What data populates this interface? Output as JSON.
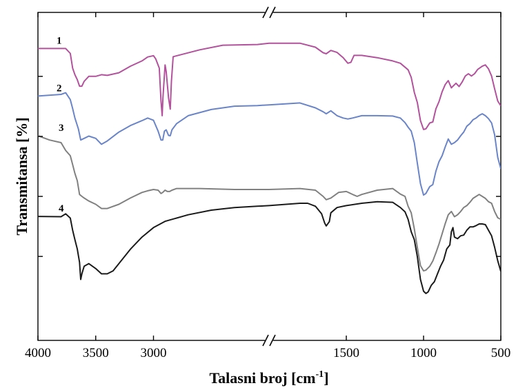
{
  "chart_data": {
    "type": "line",
    "title": "",
    "xlabel": "Talasni broj [cm",
    "xlabel_superscript": "-1",
    "xlabel_suffix": "]",
    "ylabel": "Transmitansa [%]",
    "x_reversed": true,
    "x_segments": [
      {
        "from": 4000,
        "to": 2000
      },
      {
        "from": 2000,
        "to": 500
      }
    ],
    "x_ticks": [
      4000,
      3500,
      3000,
      1500,
      1000,
      500
    ],
    "x_tick_labels": [
      "4000",
      "3500",
      "3000",
      "1500",
      "1000",
      "500"
    ],
    "y_ticks": 4,
    "y_range": [
      0,
      100
    ],
    "grid": false,
    "series": [
      {
        "name": "1",
        "color": "#b2529c",
        "points": [
          [
            4000,
            89
          ],
          [
            3760,
            89
          ],
          [
            3720,
            87.5
          ],
          [
            3700,
            83
          ],
          [
            3680,
            81
          ],
          [
            3660,
            79.5
          ],
          [
            3640,
            77.5
          ],
          [
            3620,
            77.5
          ],
          [
            3600,
            79
          ],
          [
            3560,
            80.5
          ],
          [
            3500,
            80.5
          ],
          [
            3450,
            81
          ],
          [
            3400,
            80.8
          ],
          [
            3300,
            81.6
          ],
          [
            3200,
            83.6
          ],
          [
            3100,
            85.2
          ],
          [
            3050,
            86.4
          ],
          [
            3000,
            86.8
          ],
          [
            2980,
            85.8
          ],
          [
            2950,
            83
          ],
          [
            2935,
            73
          ],
          [
            2925,
            68.5
          ],
          [
            2918,
            74
          ],
          [
            2900,
            84
          ],
          [
            2890,
            82
          ],
          [
            2870,
            74
          ],
          [
            2855,
            70.5
          ],
          [
            2845,
            79
          ],
          [
            2830,
            86.5
          ],
          [
            2600,
            88.6
          ],
          [
            2400,
            90
          ],
          [
            2100,
            90.2
          ],
          [
            2000,
            90.6
          ],
          [
            1800,
            90.6
          ],
          [
            1700,
            89.4
          ],
          [
            1650,
            87.7
          ],
          [
            1630,
            87.4
          ],
          [
            1600,
            88.4
          ],
          [
            1560,
            87.8
          ],
          [
            1520,
            86.2
          ],
          [
            1490,
            84.5
          ],
          [
            1470,
            84.8
          ],
          [
            1450,
            86.9
          ],
          [
            1400,
            86.9
          ],
          [
            1300,
            86.2
          ],
          [
            1200,
            85.2
          ],
          [
            1150,
            84.5
          ],
          [
            1100,
            82.5
          ],
          [
            1080,
            80.2
          ],
          [
            1060,
            75.6
          ],
          [
            1040,
            72.5
          ],
          [
            1020,
            67
          ],
          [
            1000,
            64.3
          ],
          [
            985,
            64.5
          ],
          [
            960,
            66.3
          ],
          [
            940,
            66.6
          ],
          [
            920,
            70.6
          ],
          [
            900,
            72.8
          ],
          [
            880,
            75.8
          ],
          [
            860,
            78
          ],
          [
            840,
            79.2
          ],
          [
            820,
            77
          ],
          [
            810,
            77.5
          ],
          [
            790,
            78.4
          ],
          [
            770,
            77.4
          ],
          [
            750,
            78.8
          ],
          [
            730,
            80.6
          ],
          [
            710,
            81.3
          ],
          [
            690,
            80.6
          ],
          [
            670,
            81.3
          ],
          [
            650,
            82.6
          ],
          [
            620,
            83.6
          ],
          [
            600,
            84
          ],
          [
            580,
            82.8
          ],
          [
            560,
            80.6
          ],
          [
            540,
            76.7
          ],
          [
            520,
            73
          ],
          [
            500,
            71.5
          ]
        ]
      },
      {
        "name": "2",
        "color": "#6a84c8",
        "points": [
          [
            4000,
            74.5
          ],
          [
            3800,
            75
          ],
          [
            3760,
            75.5
          ],
          [
            3720,
            73.4
          ],
          [
            3700,
            70.7
          ],
          [
            3680,
            67.8
          ],
          [
            3650,
            64.5
          ],
          [
            3630,
            61.1
          ],
          [
            3600,
            61.6
          ],
          [
            3560,
            62.3
          ],
          [
            3500,
            61.6
          ],
          [
            3450,
            59.8
          ],
          [
            3400,
            60.8
          ],
          [
            3300,
            63.5
          ],
          [
            3200,
            65.5
          ],
          [
            3100,
            67
          ],
          [
            3050,
            67.8
          ],
          [
            3000,
            67.1
          ],
          [
            2960,
            63.8
          ],
          [
            2935,
            61.1
          ],
          [
            2920,
            61.1
          ],
          [
            2905,
            63.8
          ],
          [
            2890,
            64.2
          ],
          [
            2870,
            62.5
          ],
          [
            2855,
            62.4
          ],
          [
            2840,
            64.2
          ],
          [
            2800,
            66.1
          ],
          [
            2700,
            68.5
          ],
          [
            2500,
            70.4
          ],
          [
            2300,
            71.4
          ],
          [
            2100,
            71.6
          ],
          [
            2000,
            71.8
          ],
          [
            1800,
            72.4
          ],
          [
            1700,
            70.9
          ],
          [
            1650,
            69.7
          ],
          [
            1630,
            69.1
          ],
          [
            1600,
            70
          ],
          [
            1560,
            68.5
          ],
          [
            1520,
            67.8
          ],
          [
            1490,
            67.5
          ],
          [
            1460,
            67.8
          ],
          [
            1400,
            68.5
          ],
          [
            1300,
            68.5
          ],
          [
            1200,
            68.4
          ],
          [
            1150,
            67.8
          ],
          [
            1120,
            66.4
          ],
          [
            1100,
            65
          ],
          [
            1080,
            63.8
          ],
          [
            1060,
            60.3
          ],
          [
            1040,
            54
          ],
          [
            1020,
            47.8
          ],
          [
            1000,
            44.3
          ],
          [
            985,
            44.8
          ],
          [
            960,
            46.9
          ],
          [
            940,
            47.5
          ],
          [
            920,
            51.6
          ],
          [
            900,
            54.5
          ],
          [
            880,
            56.3
          ],
          [
            860,
            59
          ],
          [
            840,
            61.4
          ],
          [
            820,
            59.8
          ],
          [
            800,
            60.3
          ],
          [
            780,
            61.1
          ],
          [
            760,
            62.4
          ],
          [
            740,
            63.5
          ],
          [
            720,
            65.3
          ],
          [
            700,
            66.1
          ],
          [
            680,
            67.3
          ],
          [
            660,
            67.8
          ],
          [
            640,
            68.6
          ],
          [
            620,
            69.1
          ],
          [
            600,
            68.5
          ],
          [
            580,
            67.6
          ],
          [
            560,
            66.3
          ],
          [
            540,
            62.7
          ],
          [
            520,
            55.8
          ],
          [
            500,
            52.3
          ]
        ]
      },
      {
        "name": "3",
        "color": "#808080",
        "points": [
          [
            4000,
            62.4
          ],
          [
            3900,
            61.1
          ],
          [
            3800,
            60.3
          ],
          [
            3760,
            57.9
          ],
          [
            3720,
            56.3
          ],
          [
            3700,
            53.6
          ],
          [
            3680,
            50.9
          ],
          [
            3660,
            48.7
          ],
          [
            3640,
            44.5
          ],
          [
            3620,
            43.9
          ],
          [
            3600,
            43.4
          ],
          [
            3560,
            42.5
          ],
          [
            3500,
            41.5
          ],
          [
            3450,
            40.2
          ],
          [
            3400,
            40.2
          ],
          [
            3300,
            41.5
          ],
          [
            3200,
            43.4
          ],
          [
            3100,
            45.1
          ],
          [
            3050,
            45.6
          ],
          [
            3000,
            46
          ],
          [
            2960,
            45.8
          ],
          [
            2935,
            44.8
          ],
          [
            2920,
            45.1
          ],
          [
            2900,
            45.8
          ],
          [
            2880,
            45.4
          ],
          [
            2860,
            45.4
          ],
          [
            2840,
            45.8
          ],
          [
            2800,
            46.3
          ],
          [
            2600,
            46.3
          ],
          [
            2300,
            46
          ],
          [
            2100,
            46
          ],
          [
            2000,
            46
          ],
          [
            1800,
            46.3
          ],
          [
            1700,
            45.8
          ],
          [
            1650,
            43.9
          ],
          [
            1630,
            42.9
          ],
          [
            1600,
            43.4
          ],
          [
            1550,
            45.1
          ],
          [
            1500,
            45.4
          ],
          [
            1450,
            44.3
          ],
          [
            1430,
            43.9
          ],
          [
            1400,
            44.5
          ],
          [
            1300,
            45.8
          ],
          [
            1200,
            46.3
          ],
          [
            1150,
            44.6
          ],
          [
            1120,
            43.9
          ],
          [
            1100,
            40.9
          ],
          [
            1080,
            38.9
          ],
          [
            1060,
            34
          ],
          [
            1040,
            28.3
          ],
          [
            1020,
            22.8
          ],
          [
            1000,
            21.2
          ],
          [
            985,
            21.4
          ],
          [
            960,
            22.6
          ],
          [
            940,
            24.2
          ],
          [
            920,
            26.7
          ],
          [
            900,
            29.4
          ],
          [
            880,
            32.5
          ],
          [
            860,
            35.6
          ],
          [
            840,
            38.3
          ],
          [
            820,
            39.3
          ],
          [
            800,
            37.7
          ],
          [
            780,
            38.3
          ],
          [
            760,
            39.3
          ],
          [
            740,
            40.5
          ],
          [
            720,
            41.1
          ],
          [
            700,
            42.1
          ],
          [
            680,
            43.3
          ],
          [
            660,
            43.9
          ],
          [
            640,
            44.5
          ],
          [
            620,
            43.9
          ],
          [
            600,
            43.3
          ],
          [
            580,
            42.3
          ],
          [
            560,
            41.8
          ],
          [
            540,
            39.3
          ],
          [
            520,
            37.4
          ],
          [
            500,
            36.9
          ]
        ]
      },
      {
        "name": "4",
        "color": "#1a1a1a",
        "points": [
          [
            4000,
            37.8
          ],
          [
            3800,
            37.7
          ],
          [
            3760,
            38.6
          ],
          [
            3720,
            37.3
          ],
          [
            3700,
            33.6
          ],
          [
            3680,
            30.7
          ],
          [
            3660,
            27.9
          ],
          [
            3640,
            23.8
          ],
          [
            3630,
            18.6
          ],
          [
            3620,
            20.3
          ],
          [
            3600,
            22.6
          ],
          [
            3560,
            23.4
          ],
          [
            3500,
            21.9
          ],
          [
            3450,
            20.3
          ],
          [
            3400,
            20.3
          ],
          [
            3350,
            21.2
          ],
          [
            3300,
            23.4
          ],
          [
            3200,
            27.8
          ],
          [
            3100,
            31.5
          ],
          [
            3000,
            34.4
          ],
          [
            2900,
            36.3
          ],
          [
            2700,
            38.3
          ],
          [
            2500,
            39.7
          ],
          [
            2300,
            40.5
          ],
          [
            2100,
            40.9
          ],
          [
            2000,
            41.1
          ],
          [
            1800,
            41.8
          ],
          [
            1750,
            41.8
          ],
          [
            1700,
            40.9
          ],
          [
            1660,
            38.6
          ],
          [
            1640,
            35.8
          ],
          [
            1630,
            34.9
          ],
          [
            1610,
            36.2
          ],
          [
            1600,
            38.9
          ],
          [
            1560,
            40.5
          ],
          [
            1500,
            41.1
          ],
          [
            1400,
            41.8
          ],
          [
            1300,
            42.3
          ],
          [
            1200,
            42.1
          ],
          [
            1150,
            40.5
          ],
          [
            1120,
            39.2
          ],
          [
            1100,
            36.9
          ],
          [
            1080,
            33.1
          ],
          [
            1060,
            30.7
          ],
          [
            1040,
            25.5
          ],
          [
            1020,
            18.6
          ],
          [
            1000,
            15
          ],
          [
            985,
            14.3
          ],
          [
            970,
            14.8
          ],
          [
            950,
            16.8
          ],
          [
            930,
            17.9
          ],
          [
            910,
            20.3
          ],
          [
            890,
            22.6
          ],
          [
            870,
            24.5
          ],
          [
            850,
            27.9
          ],
          [
            830,
            29.1
          ],
          [
            820,
            33.1
          ],
          [
            810,
            34.4
          ],
          [
            800,
            31.5
          ],
          [
            780,
            31
          ],
          [
            760,
            31.9
          ],
          [
            740,
            32.1
          ],
          [
            720,
            33.6
          ],
          [
            700,
            34.6
          ],
          [
            680,
            34.6
          ],
          [
            660,
            35
          ],
          [
            640,
            35.5
          ],
          [
            620,
            35.5
          ],
          [
            600,
            35.3
          ],
          [
            580,
            33.6
          ],
          [
            560,
            31.9
          ],
          [
            540,
            28.4
          ],
          [
            520,
            24.3
          ],
          [
            500,
            21
          ]
        ]
      }
    ]
  }
}
